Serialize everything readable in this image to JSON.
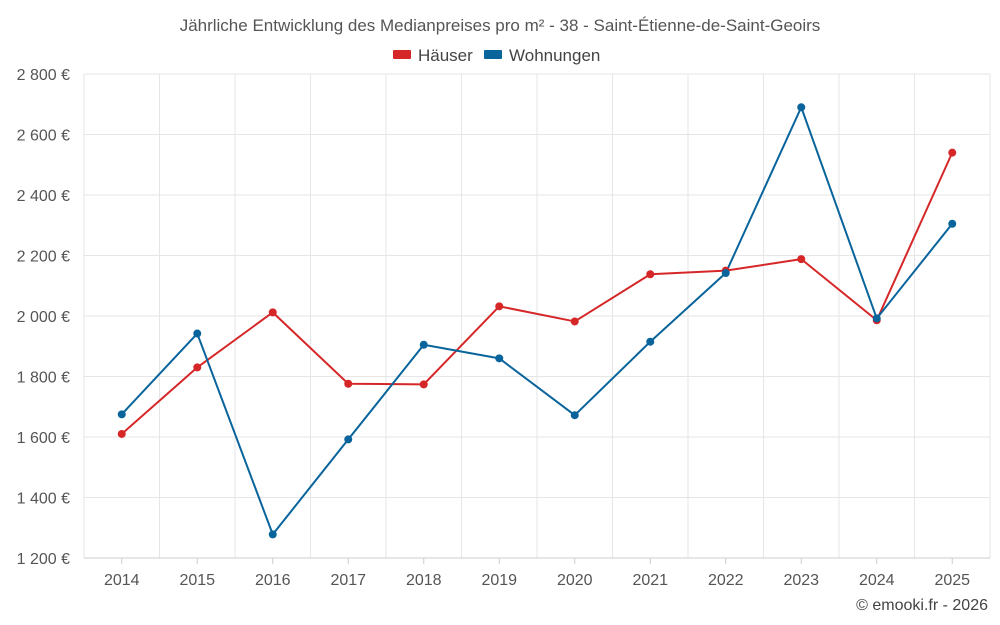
{
  "chart_data": {
    "type": "line",
    "title": "Jährliche Entwicklung des Medianpreises pro m² - 38 - Saint-Étienne-de-Saint-Geoirs",
    "categories": [
      "2014",
      "2015",
      "2016",
      "2017",
      "2018",
      "2019",
      "2020",
      "2021",
      "2022",
      "2023",
      "2024",
      "2025"
    ],
    "series": [
      {
        "name": "Häuser",
        "color": "#d62728",
        "values": [
          1610,
          1830,
          2012,
          1776,
          1774,
          2032,
          1982,
          2138,
          2150,
          2188,
          1986,
          2540
        ]
      },
      {
        "name": "Wohnungen",
        "color": "#08649b",
        "values": [
          1675,
          1942,
          1278,
          1592,
          1905,
          1860,
          1672,
          1915,
          2142,
          2690,
          1992,
          2305
        ]
      }
    ],
    "y_ticks": [
      1200,
      1400,
      1600,
      1800,
      2000,
      2200,
      2400,
      2600,
      2800
    ],
    "y_tick_labels": [
      "1 200 €",
      "1 400 €",
      "1 600 €",
      "1 800 €",
      "2 000 €",
      "2 200 €",
      "2 400 €",
      "2 600 €",
      "2 800 €"
    ],
    "ylim": [
      1200,
      2800
    ],
    "xlabel": "",
    "ylabel": "",
    "grid": true,
    "legend_position": "top-center"
  },
  "credit": "© emooki.fr - 2026"
}
